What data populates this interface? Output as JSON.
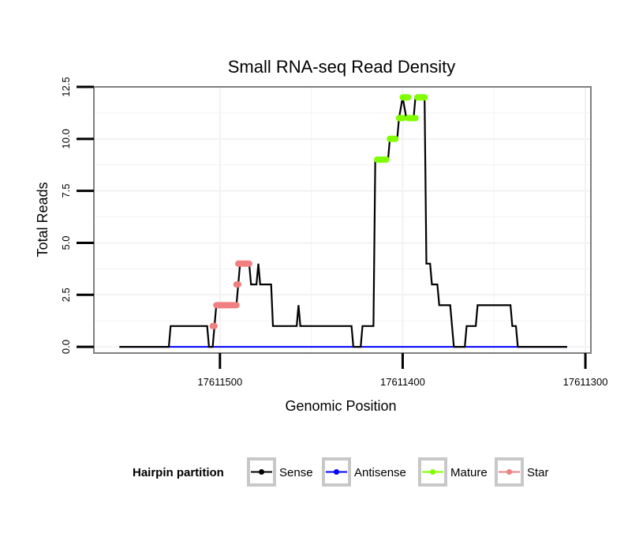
{
  "chart_data": {
    "type": "line",
    "title": "Small RNA-seq Read Density",
    "xlabel": "Genomic Position",
    "ylabel": "Total Reads",
    "xlim": [
      17611569,
      17611297
    ],
    "x_reversed": true,
    "ylim": [
      -0.3,
      12.5
    ],
    "x_ticks": [
      17611500,
      17611400,
      17611300
    ],
    "x_tick_labels": [
      "17611500",
      "17611400",
      "17611300"
    ],
    "y_ticks": [
      0,
      2.5,
      5,
      7.5,
      10,
      12.5
    ],
    "y_tick_labels": [
      "0.0",
      "2.5",
      "5.0",
      "7.5",
      "10.0",
      "12.5"
    ],
    "grid": true,
    "colors": {
      "Sense": "#000000",
      "Antisense": "#0000ff",
      "Mature": "#7fff00",
      "Star": "#f08080",
      "panel_border": "#7f7f7f",
      "grid": "#f2f2f2"
    },
    "legend": {
      "title": "Hairpin partition",
      "position": "bottom",
      "entries": [
        "Sense",
        "Antisense",
        "Mature",
        "Star"
      ]
    },
    "series": [
      {
        "name": "Sense",
        "points": [
          [
            17611555,
            0
          ],
          [
            17611528,
            0
          ],
          [
            17611527,
            1
          ],
          [
            17611507,
            1
          ],
          [
            17611506,
            0
          ],
          [
            17611504,
            0
          ],
          [
            17611503,
            1
          ],
          [
            17611502,
            2
          ],
          [
            17611491,
            2
          ],
          [
            17611490,
            3
          ],
          [
            17611489,
            4
          ],
          [
            17611484,
            4
          ],
          [
            17611483,
            3
          ],
          [
            17611480,
            3
          ],
          [
            17611479,
            4
          ],
          [
            17611478,
            3
          ],
          [
            17611472,
            3
          ],
          [
            17611471,
            1
          ],
          [
            17611458,
            1
          ],
          [
            17611457,
            2
          ],
          [
            17611456,
            1
          ],
          [
            17611428,
            1
          ],
          [
            17611427,
            0
          ],
          [
            17611423,
            0
          ],
          [
            17611422,
            1
          ],
          [
            17611416,
            1
          ],
          [
            17611415,
            9
          ],
          [
            17611408,
            9
          ],
          [
            17611407,
            10
          ],
          [
            17611403,
            10
          ],
          [
            17611402,
            11
          ],
          [
            17611400,
            12
          ],
          [
            17611398,
            11
          ],
          [
            17611394,
            11
          ],
          [
            17611393,
            12
          ],
          [
            17611388,
            12
          ],
          [
            17611387,
            4
          ],
          [
            17611385,
            4
          ],
          [
            17611384,
            3
          ],
          [
            17611381,
            3
          ],
          [
            17611380,
            2
          ],
          [
            17611374,
            2
          ],
          [
            17611372,
            0
          ],
          [
            17611366,
            0
          ],
          [
            17611365,
            1
          ],
          [
            17611360,
            1
          ],
          [
            17611359,
            2
          ],
          [
            17611341,
            2
          ],
          [
            17611340,
            1
          ],
          [
            17611338,
            1
          ],
          [
            17611337,
            0
          ],
          [
            17611310,
            0
          ]
        ]
      },
      {
        "name": "Antisense",
        "points": [
          [
            17611555,
            0
          ],
          [
            17611310,
            0
          ]
        ]
      },
      {
        "name": "Mature",
        "segments": [
          [
            [
              17611414,
              9
            ],
            [
              17611409,
              9
            ]
          ],
          [
            [
              17611407,
              10
            ],
            [
              17611404,
              10
            ]
          ],
          [
            [
              17611402,
              11
            ],
            [
              17611400,
              11
            ]
          ],
          [
            [
              17611400,
              12
            ],
            [
              17611397,
              12
            ]
          ],
          [
            [
              17611397,
              11
            ],
            [
              17611393,
              11
            ]
          ],
          [
            [
              17611392,
              12
            ],
            [
              17611388,
              12
            ]
          ]
        ]
      },
      {
        "name": "Star",
        "segments": [
          [
            [
              17611504,
              1
            ],
            [
              17611503,
              1
            ]
          ],
          [
            [
              17611502,
              2
            ],
            [
              17611491,
              2
            ]
          ],
          [
            [
              17611491,
              3
            ],
            [
              17611490,
              3
            ]
          ],
          [
            [
              17611490,
              4
            ],
            [
              17611484,
              4
            ]
          ]
        ]
      }
    ]
  }
}
